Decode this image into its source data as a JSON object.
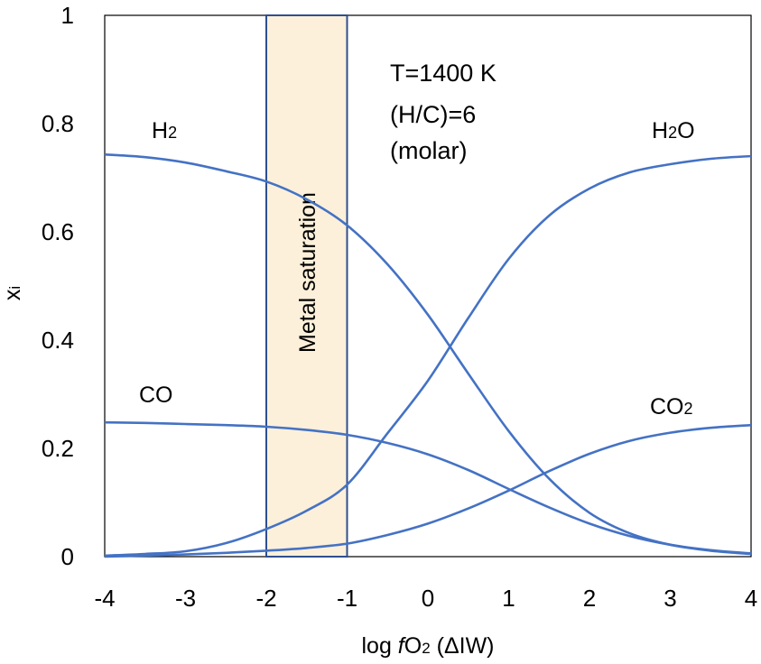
{
  "chart_data": {
    "type": "line",
    "title": "",
    "xlabel": {
      "pre": "log ",
      "f": "f",
      "mid": "O",
      "sub": "2",
      "post": " (ΔIW)"
    },
    "ylabel": {
      "main": "x",
      "sub": "i"
    },
    "xlim": [
      -4,
      4
    ],
    "ylim": [
      0,
      1
    ],
    "x_ticks": [
      -4,
      -3,
      -2,
      -1,
      0,
      1,
      2,
      3,
      4
    ],
    "x_tick_labels": [
      "-4",
      "-3",
      "-2",
      "-1",
      "0",
      "1",
      "2",
      "3",
      "4"
    ],
    "y_ticks": [
      0,
      0.2,
      0.4,
      0.6,
      0.8,
      1
    ],
    "y_tick_labels": [
      "0",
      "0.2",
      "0.4",
      "0.6",
      "0.8",
      "1"
    ],
    "grid": false,
    "line_color": "#4472C4",
    "band": {
      "x_range": [
        -2,
        -1
      ],
      "label": "Metal saturation",
      "fill": "#FCF0DA",
      "stroke": "#2F4F8F"
    },
    "annotations": {
      "line1": "T=1400 K",
      "line2": "(H/C)=6",
      "line3": "(molar)"
    },
    "x": [
      -4,
      -3.5,
      -3,
      -2.5,
      -2,
      -1.5,
      -1,
      -0.5,
      0,
      0.5,
      1,
      1.5,
      2,
      2.5,
      3,
      3.5,
      4
    ],
    "series": [
      {
        "name": "H2",
        "label_main": "H",
        "label_sub": "2",
        "values": [
          0.743,
          0.738,
          0.728,
          0.712,
          0.693,
          0.66,
          0.612,
          0.54,
          0.447,
          0.338,
          0.232,
          0.144,
          0.081,
          0.043,
          0.022,
          0.011,
          0.005
        ]
      },
      {
        "name": "H2O",
        "label_main": "H",
        "label_sub": "2",
        "label_post": "O",
        "values": [
          0.002,
          0.005,
          0.01,
          0.025,
          0.051,
          0.085,
          0.133,
          0.228,
          0.325,
          0.441,
          0.55,
          0.63,
          0.68,
          0.71,
          0.725,
          0.735,
          0.74
        ]
      },
      {
        "name": "CO",
        "label_main": "CO",
        "values": [
          0.248,
          0.247,
          0.245,
          0.243,
          0.24,
          0.234,
          0.225,
          0.21,
          0.189,
          0.16,
          0.125,
          0.091,
          0.061,
          0.038,
          0.022,
          0.012,
          0.006
        ]
      },
      {
        "name": "CO2",
        "label_main": "CO",
        "label_sub": "2",
        "values": [
          0.0,
          0.002,
          0.004,
          0.007,
          0.011,
          0.016,
          0.024,
          0.04,
          0.061,
          0.089,
          0.122,
          0.158,
          0.19,
          0.214,
          0.229,
          0.238,
          0.243
        ]
      }
    ]
  }
}
